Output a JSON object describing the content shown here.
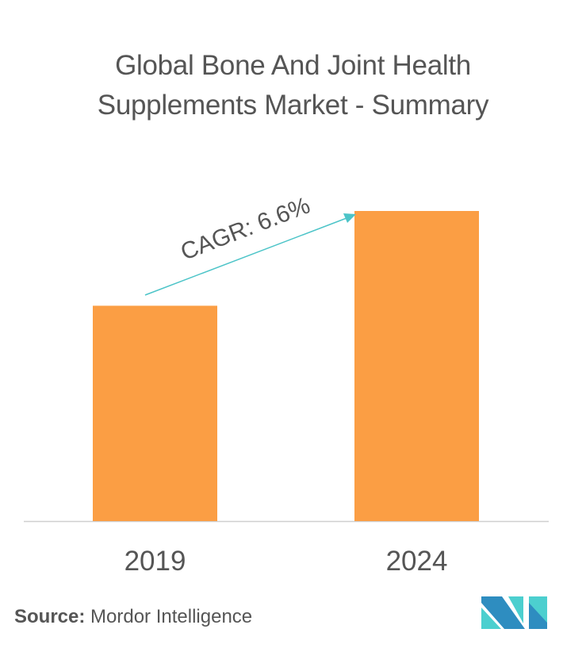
{
  "chart_data": {
    "type": "bar",
    "title_lines": [
      "Global Bone And Joint Health",
      "Supplements Market - Summary"
    ],
    "categories": [
      "2019",
      "2024"
    ],
    "values": [
      100,
      144
    ],
    "value_note": "relative bar heights; no axis values printed",
    "ylim": [
      0,
      144
    ],
    "grid": false,
    "bar_color": "#FB9E44",
    "annotation": {
      "text": "CAGR: 6.6%",
      "arrow_color": "#4CC4C8"
    }
  },
  "source": {
    "label": "Source:",
    "text": "Mordor Intelligence"
  },
  "logo": {
    "colors": [
      "#2E8DC0",
      "#4CCFCF"
    ]
  }
}
